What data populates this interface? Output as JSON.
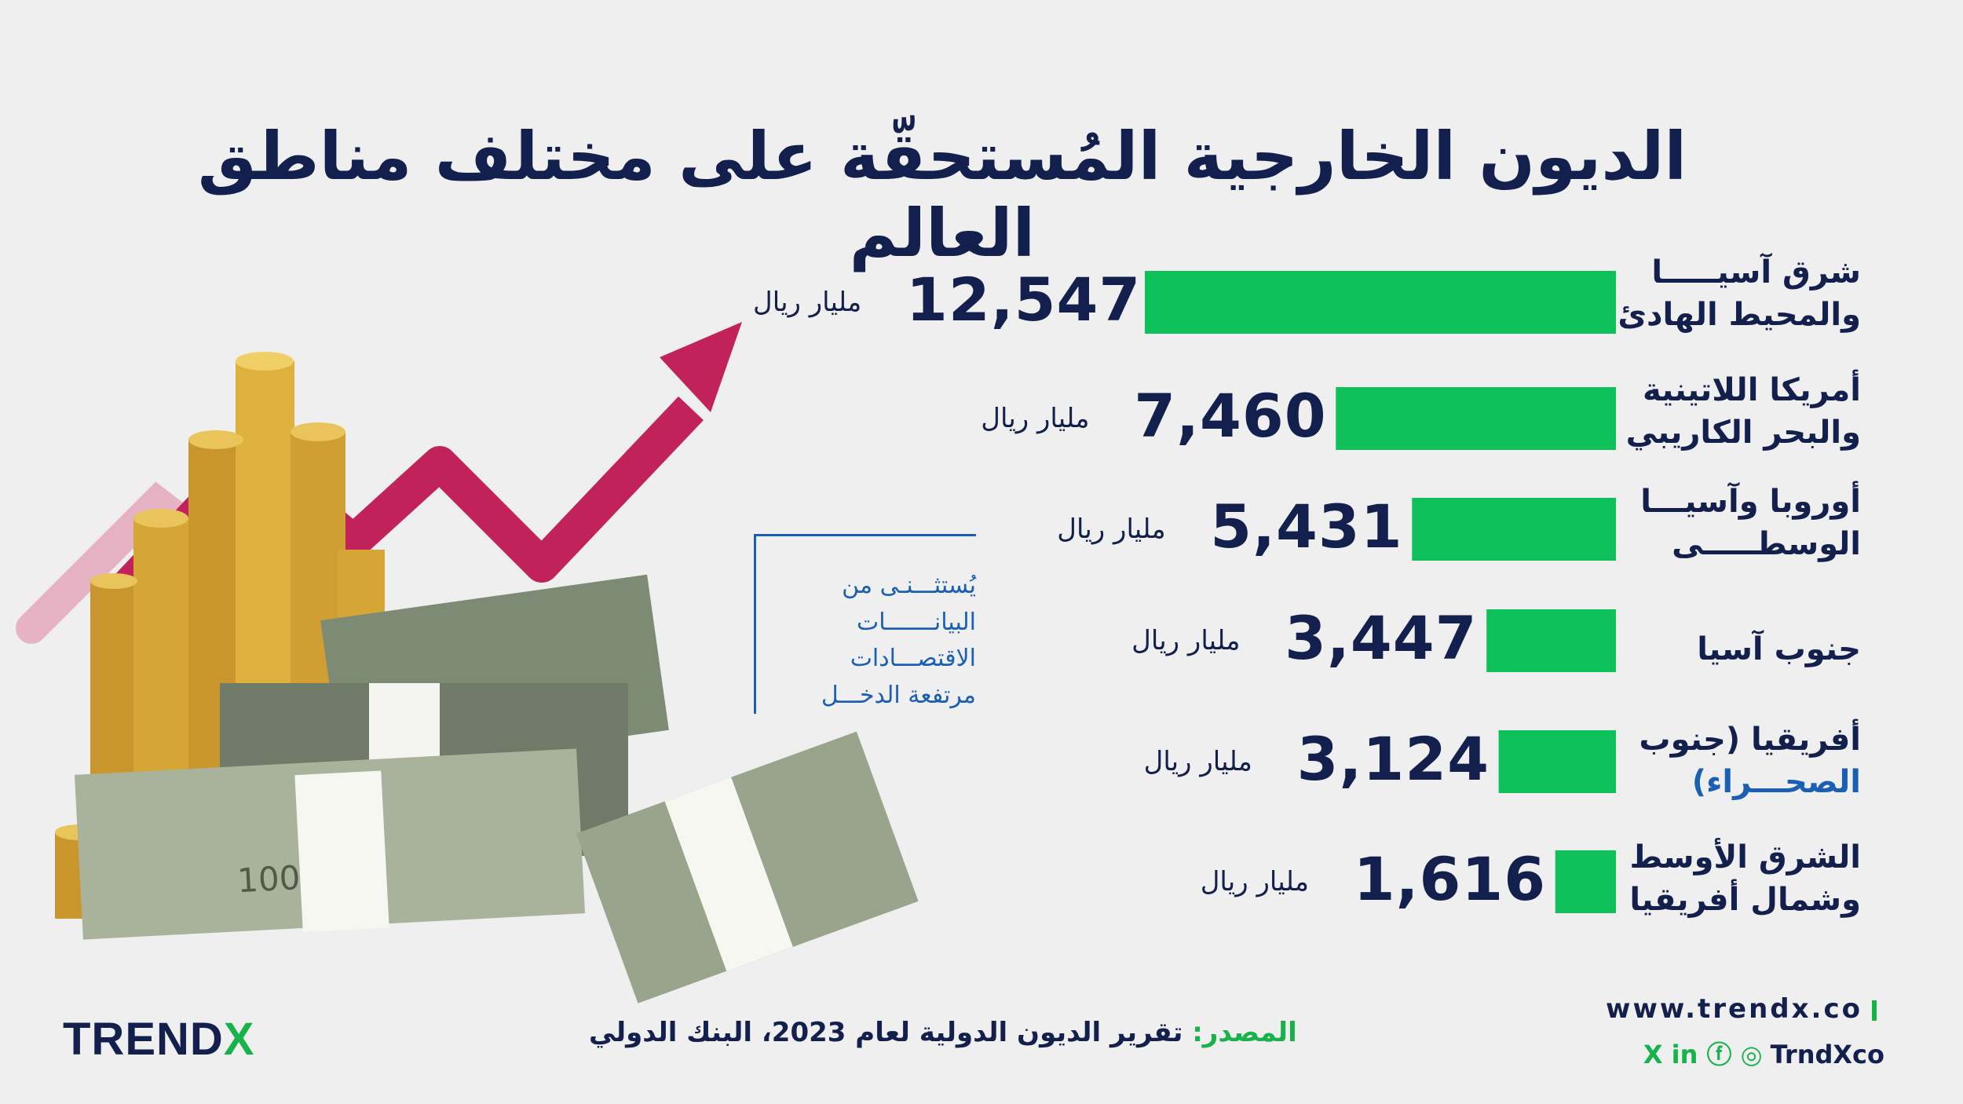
{
  "title": "الديون الخارجية المُستحقّة على مختلف مناطق العالم",
  "chart_data": {
    "type": "bar",
    "orientation": "horizontal",
    "categories": [
      "شرق آسيا والمحيط الهادئ",
      "أمريكا اللاتينية والبحر الكاريبي",
      "أوروبا وآسيا الوسطى",
      "جنوب آسيا",
      "أفريقيا (جنوب الصحراء)",
      "الشرق الأوسط وشمال أفريقيا"
    ],
    "values": [
      12547,
      7460,
      5431,
      3447,
      3124,
      1616
    ],
    "value_labels": [
      "12,547",
      "7,460",
      "5,431",
      "3,447",
      "3,124",
      "1,616"
    ],
    "unit": "مليار ريال",
    "bar_color": "#0fc15a",
    "text_color": "#13204d"
  },
  "regions": [
    {
      "line1": "شرق آسيـــــا",
      "line2": "والمحيط الهادئ"
    },
    {
      "line1": "أمريكا اللاتينية",
      "line2": "والبحر الكاريبي"
    },
    {
      "line1": "أوروبا وآسيـــا",
      "line2": "الوسطـــــى"
    },
    {
      "line1": "جنوب آسيا",
      "line2": ""
    },
    {
      "line1": "أفريقيا (جنوب",
      "line2": "الصحـــراء)"
    },
    {
      "line1": "الشرق الأوسط",
      "line2": "وشمال أفريقيا"
    }
  ],
  "note": {
    "lines": [
      "يُستثـــنـى من",
      "البيانـــــــات",
      "الاقتصـــادات",
      "مرتفعة الدخـــل"
    ]
  },
  "footer": {
    "logo_main": "TREND",
    "logo_x": "X",
    "source_label": "المصدر:",
    "source_text": " تقرير الديون الدولية لعام 2023، البنك الدولي",
    "website": "www.trendx.co",
    "social_handle": "TrndXco",
    "social_icons": "X in ⓕ ◎"
  },
  "colors": {
    "background": "#efefef",
    "accent_green": "#17b34a",
    "navy": "#13204d",
    "arrow": "#c2225a",
    "note_blue": "#1a5fb4"
  }
}
